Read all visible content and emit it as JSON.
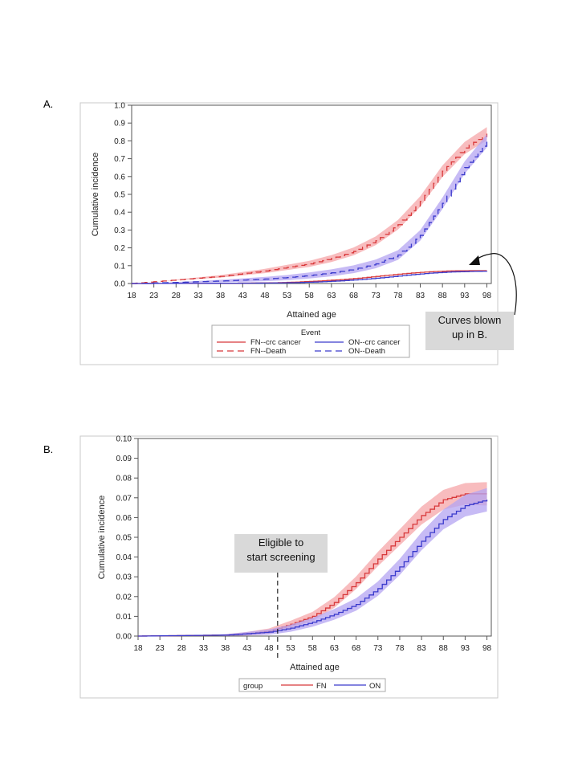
{
  "labels": {
    "panel_a": "A.",
    "panel_b": "B."
  },
  "colors": {
    "fn": "#d8383a",
    "on": "#3a3acc",
    "fn_band": "#f6a6a8",
    "on_band": "#b4a4f2",
    "frame": "#c8c8c8",
    "callout_bg": "#d9d9d9"
  },
  "chart_data": [
    {
      "id": "A",
      "type": "line",
      "style": "step",
      "title": "",
      "xlabel": "Attained age",
      "ylabel": "Cumulative incidence",
      "xlim": [
        18,
        99
      ],
      "ylim": [
        0,
        1.0
      ],
      "xticks": [
        "18",
        "23",
        "28",
        "33",
        "38",
        "43",
        "48",
        "53",
        "58",
        "63",
        "68",
        "73",
        "78",
        "83",
        "88",
        "93",
        "98"
      ],
      "yticks": [
        "0.0",
        "0.1",
        "0.2",
        "0.3",
        "0.4",
        "0.5",
        "0.6",
        "0.7",
        "0.8",
        "0.9",
        "1.0"
      ],
      "grid": false,
      "legend": {
        "title": "Event",
        "position": "bottom",
        "entries": [
          "FN--crc cancer",
          "ON--crc cancer",
          "FN--Death",
          "ON--Death"
        ]
      },
      "series": [
        {
          "name": "FN--crc cancer",
          "group": "FN",
          "dash": false,
          "band": false,
          "x": [
            18,
            43,
            50,
            55,
            60,
            65,
            70,
            75,
            80,
            85,
            90,
            95,
            98
          ],
          "y": [
            0,
            0.002,
            0.004,
            0.008,
            0.014,
            0.022,
            0.032,
            0.045,
            0.057,
            0.066,
            0.071,
            0.072,
            0.072
          ]
        },
        {
          "name": "ON--crc cancer",
          "group": "ON",
          "dash": false,
          "band": false,
          "x": [
            18,
            43,
            50,
            55,
            60,
            65,
            70,
            75,
            80,
            85,
            90,
            95,
            98
          ],
          "y": [
            0,
            0.002,
            0.003,
            0.005,
            0.009,
            0.015,
            0.023,
            0.034,
            0.047,
            0.058,
            0.065,
            0.068,
            0.069
          ]
        },
        {
          "name": "FN--Death",
          "group": "FN",
          "dash": true,
          "band": true,
          "x": [
            18,
            23,
            28,
            33,
            38,
            43,
            48,
            53,
            58,
            63,
            68,
            73,
            78,
            83,
            88,
            93,
            98
          ],
          "y": [
            0,
            0.01,
            0.02,
            0.03,
            0.04,
            0.055,
            0.07,
            0.09,
            0.11,
            0.14,
            0.18,
            0.24,
            0.33,
            0.46,
            0.63,
            0.76,
            0.84
          ]
        },
        {
          "name": "ON--Death",
          "group": "ON",
          "dash": true,
          "band": true,
          "x": [
            18,
            23,
            28,
            33,
            38,
            43,
            48,
            53,
            58,
            63,
            68,
            73,
            78,
            83,
            88,
            93,
            98
          ],
          "y": [
            0,
            0.003,
            0.006,
            0.01,
            0.014,
            0.019,
            0.025,
            0.033,
            0.045,
            0.06,
            0.08,
            0.11,
            0.16,
            0.27,
            0.45,
            0.65,
            0.8
          ]
        }
      ],
      "annotation": {
        "text_lines": [
          "Curves blown",
          "up in B."
        ]
      }
    },
    {
      "id": "B",
      "type": "line",
      "style": "step",
      "title": "",
      "xlabel": "Attained age",
      "ylabel": "Cumulative incidence",
      "xlim": [
        18,
        99
      ],
      "ylim": [
        0,
        0.1
      ],
      "xticks": [
        "18",
        "23",
        "28",
        "33",
        "38",
        "43",
        "48",
        "53",
        "58",
        "63",
        "68",
        "73",
        "78",
        "83",
        "88",
        "93",
        "98"
      ],
      "yticks": [
        "0.00",
        "0.01",
        "0.02",
        "0.03",
        "0.04",
        "0.05",
        "0.06",
        "0.07",
        "0.08",
        "0.09",
        "0.10"
      ],
      "grid": false,
      "legend": {
        "title": "group",
        "position": "bottom",
        "entries": [
          "FN",
          "ON"
        ]
      },
      "series": [
        {
          "name": "FN",
          "group": "FN",
          "dash": false,
          "band": true,
          "x": [
            18,
            38,
            43,
            48,
            53,
            58,
            63,
            68,
            73,
            78,
            83,
            88,
            93,
            98
          ],
          "y": [
            0,
            0.0005,
            0.0012,
            0.0025,
            0.006,
            0.01,
            0.017,
            0.027,
            0.039,
            0.05,
            0.061,
            0.069,
            0.072,
            0.072
          ]
        },
        {
          "name": "ON",
          "group": "ON",
          "dash": false,
          "band": true,
          "x": [
            18,
            38,
            43,
            48,
            53,
            58,
            63,
            68,
            73,
            78,
            83,
            88,
            93,
            98
          ],
          "y": [
            0,
            0.0005,
            0.0012,
            0.002,
            0.004,
            0.007,
            0.011,
            0.016,
            0.024,
            0.035,
            0.048,
            0.059,
            0.066,
            0.069
          ]
        }
      ],
      "annotation": {
        "text_lines": [
          "Eligible to",
          "start screening"
        ],
        "marker_x": 50
      }
    }
  ]
}
